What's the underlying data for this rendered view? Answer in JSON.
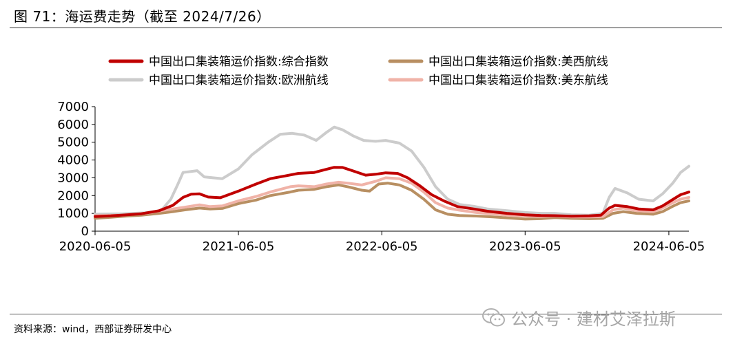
{
  "header": {
    "title": "图 71：海运费走势（截至 2024/7/26）"
  },
  "footer": {
    "source": "资料来源：wind，西部证券研发中心",
    "watermark_text": "公众号 · 建材艾泽拉斯",
    "watermark_icon": "wechat-icon"
  },
  "chart_data": {
    "type": "line",
    "xlabel": "",
    "ylabel": "",
    "ylim": [
      0,
      7000
    ],
    "yticks": [
      0,
      1000,
      2000,
      3000,
      4000,
      5000,
      6000,
      7000
    ],
    "xlim": [
      "2020-06-05",
      "2024-07-26"
    ],
    "xticks": [
      "2020-06-05",
      "2021-06-05",
      "2022-06-05",
      "2023-06-05",
      "2024-06-05"
    ],
    "legend_position": "top",
    "grid": false,
    "series": [
      {
        "name": "中国出口集装箱运价指数:综合指数",
        "color": "#c00000",
        "width": 4,
        "points": [
          [
            "2020-06-05",
            820
          ],
          [
            "2020-07-15",
            860
          ],
          [
            "2020-08-25",
            920
          ],
          [
            "2020-10-01",
            980
          ],
          [
            "2020-11-15",
            1150
          ],
          [
            "2020-12-20",
            1450
          ],
          [
            "2021-01-15",
            1900
          ],
          [
            "2021-02-05",
            2080
          ],
          [
            "2021-02-26",
            2100
          ],
          [
            "2021-03-20",
            1920
          ],
          [
            "2021-04-20",
            1880
          ],
          [
            "2021-06-05",
            2250
          ],
          [
            "2021-07-20",
            2650
          ],
          [
            "2021-08-25",
            2950
          ],
          [
            "2021-10-01",
            3100
          ],
          [
            "2021-11-05",
            3250
          ],
          [
            "2021-12-15",
            3300
          ],
          [
            "2022-01-10",
            3450
          ],
          [
            "2022-02-04",
            3590
          ],
          [
            "2022-02-25",
            3580
          ],
          [
            "2022-03-25",
            3380
          ],
          [
            "2022-04-25",
            3150
          ],
          [
            "2022-05-20",
            3200
          ],
          [
            "2022-06-15",
            3280
          ],
          [
            "2022-07-15",
            3250
          ],
          [
            "2022-08-10",
            3000
          ],
          [
            "2022-09-10",
            2550
          ],
          [
            "2022-10-10",
            2050
          ],
          [
            "2022-11-10",
            1700
          ],
          [
            "2022-12-15",
            1380
          ],
          [
            "2023-01-25",
            1250
          ],
          [
            "2023-03-01",
            1120
          ],
          [
            "2023-04-20",
            1000
          ],
          [
            "2023-06-05",
            920
          ],
          [
            "2023-07-15",
            880
          ],
          [
            "2023-08-20",
            870
          ],
          [
            "2023-10-01",
            840
          ],
          [
            "2023-11-15",
            860
          ],
          [
            "2023-12-15",
            900
          ],
          [
            "2024-01-05",
            1300
          ],
          [
            "2024-01-20",
            1450
          ],
          [
            "2024-02-20",
            1380
          ],
          [
            "2024-03-20",
            1250
          ],
          [
            "2024-04-26",
            1200
          ],
          [
            "2024-05-20",
            1420
          ],
          [
            "2024-06-15",
            1780
          ],
          [
            "2024-07-05",
            2050
          ],
          [
            "2024-07-26",
            2200
          ]
        ]
      },
      {
        "name": "中国出口集装箱运价指数:美西航线",
        "color": "#b88f62",
        "width": 4,
        "points": [
          [
            "2020-06-05",
            720
          ],
          [
            "2020-07-15",
            780
          ],
          [
            "2020-08-25",
            850
          ],
          [
            "2020-10-01",
            900
          ],
          [
            "2020-11-15",
            1000
          ],
          [
            "2020-12-20",
            1100
          ],
          [
            "2021-01-20",
            1200
          ],
          [
            "2021-02-26",
            1300
          ],
          [
            "2021-03-25",
            1250
          ],
          [
            "2021-04-25",
            1280
          ],
          [
            "2021-06-05",
            1550
          ],
          [
            "2021-07-20",
            1750
          ],
          [
            "2021-08-25",
            2000
          ],
          [
            "2021-09-20",
            2100
          ],
          [
            "2021-10-15",
            2200
          ],
          [
            "2021-11-05",
            2300
          ],
          [
            "2021-12-15",
            2350
          ],
          [
            "2022-01-15",
            2500
          ],
          [
            "2022-02-15",
            2600
          ],
          [
            "2022-03-10",
            2500
          ],
          [
            "2022-04-15",
            2300
          ],
          [
            "2022-05-05",
            2250
          ],
          [
            "2022-05-28",
            2650
          ],
          [
            "2022-06-20",
            2700
          ],
          [
            "2022-07-20",
            2600
          ],
          [
            "2022-08-20",
            2300
          ],
          [
            "2022-09-20",
            1800
          ],
          [
            "2022-10-20",
            1200
          ],
          [
            "2022-11-20",
            950
          ],
          [
            "2022-12-20",
            880
          ],
          [
            "2023-02-01",
            850
          ],
          [
            "2023-03-15",
            800
          ],
          [
            "2023-04-20",
            750
          ],
          [
            "2023-06-05",
            680
          ],
          [
            "2023-07-15",
            700
          ],
          [
            "2023-08-20",
            760
          ],
          [
            "2023-10-01",
            720
          ],
          [
            "2023-11-15",
            700
          ],
          [
            "2023-12-20",
            720
          ],
          [
            "2024-01-15",
            1000
          ],
          [
            "2024-02-10",
            1100
          ],
          [
            "2024-03-15",
            1000
          ],
          [
            "2024-04-26",
            950
          ],
          [
            "2024-05-20",
            1100
          ],
          [
            "2024-06-15",
            1400
          ],
          [
            "2024-07-05",
            1600
          ],
          [
            "2024-07-26",
            1700
          ]
        ]
      },
      {
        "name": "中国出口集装箱运价指数:欧洲航线",
        "color": "#cccccc",
        "width": 4,
        "points": [
          [
            "2020-06-05",
            960
          ],
          [
            "2020-08-15",
            980
          ],
          [
            "2020-10-10",
            1030
          ],
          [
            "2020-11-20",
            1150
          ],
          [
            "2020-12-15",
            1800
          ],
          [
            "2021-01-01",
            2600
          ],
          [
            "2021-01-15",
            3300
          ],
          [
            "2021-02-20",
            3400
          ],
          [
            "2021-03-10",
            3050
          ],
          [
            "2021-04-25",
            2950
          ],
          [
            "2021-06-05",
            3500
          ],
          [
            "2021-07-10",
            4300
          ],
          [
            "2021-08-20",
            5000
          ],
          [
            "2021-09-20",
            5450
          ],
          [
            "2021-10-20",
            5500
          ],
          [
            "2021-11-20",
            5400
          ],
          [
            "2021-12-20",
            5100
          ],
          [
            "2022-01-15",
            5550
          ],
          [
            "2022-02-04",
            5850
          ],
          [
            "2022-02-25",
            5700
          ],
          [
            "2022-03-25",
            5350
          ],
          [
            "2022-04-20",
            5100
          ],
          [
            "2022-05-20",
            5050
          ],
          [
            "2022-06-15",
            5100
          ],
          [
            "2022-07-20",
            4950
          ],
          [
            "2022-08-20",
            4500
          ],
          [
            "2022-09-20",
            3600
          ],
          [
            "2022-10-20",
            2500
          ],
          [
            "2022-11-20",
            1800
          ],
          [
            "2022-12-20",
            1500
          ],
          [
            "2023-01-25",
            1400
          ],
          [
            "2023-03-01",
            1250
          ],
          [
            "2023-04-20",
            1150
          ],
          [
            "2023-06-05",
            1050
          ],
          [
            "2023-07-15",
            1000
          ],
          [
            "2023-08-20",
            1000
          ],
          [
            "2023-10-01",
            920
          ],
          [
            "2023-11-15",
            900
          ],
          [
            "2023-12-20",
            1000
          ],
          [
            "2024-01-05",
            1900
          ],
          [
            "2024-01-20",
            2400
          ],
          [
            "2024-02-20",
            2150
          ],
          [
            "2024-03-20",
            1800
          ],
          [
            "2024-04-26",
            1700
          ],
          [
            "2024-05-20",
            2100
          ],
          [
            "2024-06-15",
            2700
          ],
          [
            "2024-07-05",
            3300
          ],
          [
            "2024-07-26",
            3650
          ]
        ]
      },
      {
        "name": "中国出口集装箱运价指数:美东航线",
        "color": "#f0b3a8",
        "width": 4,
        "points": [
          [
            "2020-06-05",
            870
          ],
          [
            "2020-08-15",
            900
          ],
          [
            "2020-10-10",
            1000
          ],
          [
            "2020-11-20",
            1150
          ],
          [
            "2020-12-20",
            1250
          ],
          [
            "2021-01-20",
            1350
          ],
          [
            "2021-02-26",
            1480
          ],
          [
            "2021-03-25",
            1380
          ],
          [
            "2021-04-25",
            1420
          ],
          [
            "2021-06-05",
            1700
          ],
          [
            "2021-07-20",
            1950
          ],
          [
            "2021-08-25",
            2200
          ],
          [
            "2021-09-20",
            2350
          ],
          [
            "2021-10-15",
            2500
          ],
          [
            "2021-11-05",
            2550
          ],
          [
            "2021-12-15",
            2500
          ],
          [
            "2022-01-15",
            2650
          ],
          [
            "2022-02-15",
            2750
          ],
          [
            "2022-03-10",
            2700
          ],
          [
            "2022-04-15",
            2600
          ],
          [
            "2022-05-20",
            2800
          ],
          [
            "2022-06-15",
            3000
          ],
          [
            "2022-07-20",
            2950
          ],
          [
            "2022-08-20",
            2700
          ],
          [
            "2022-09-20",
            2200
          ],
          [
            "2022-10-20",
            1600
          ],
          [
            "2022-11-20",
            1300
          ],
          [
            "2022-12-20",
            1180
          ],
          [
            "2023-02-01",
            1050
          ],
          [
            "2023-03-15",
            980
          ],
          [
            "2023-04-20",
            900
          ],
          [
            "2023-06-05",
            850
          ],
          [
            "2023-07-15",
            820
          ],
          [
            "2023-08-20",
            850
          ],
          [
            "2023-10-01",
            800
          ],
          [
            "2023-11-15",
            800
          ],
          [
            "2023-12-20",
            820
          ],
          [
            "2024-01-15",
            1200
          ],
          [
            "2024-02-10",
            1300
          ],
          [
            "2024-03-15",
            1150
          ],
          [
            "2024-04-26",
            1100
          ],
          [
            "2024-05-20",
            1300
          ],
          [
            "2024-06-15",
            1600
          ],
          [
            "2024-07-05",
            1800
          ],
          [
            "2024-07-26",
            1900
          ]
        ]
      }
    ]
  }
}
